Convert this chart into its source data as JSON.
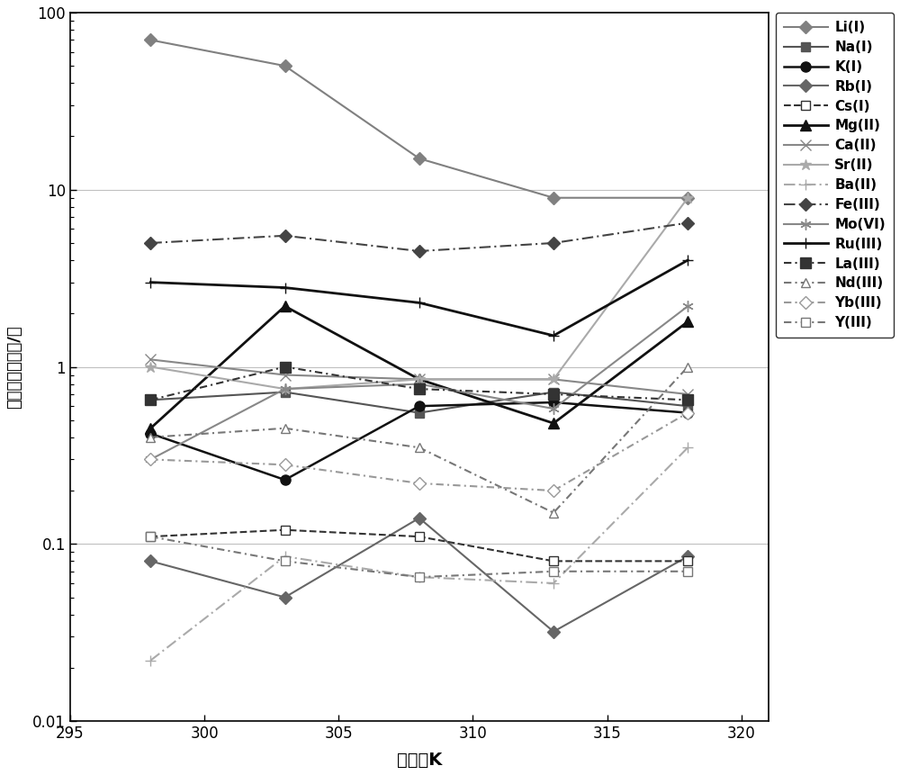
{
  "x": [
    298,
    303,
    308,
    313,
    318
  ],
  "series_order": [
    "Li(I)",
    "Na(I)",
    "K(I)",
    "Rb(I)",
    "Cs(I)",
    "Mg(II)",
    "Ca(II)",
    "Sr(II)",
    "Ba(II)",
    "Fe(III)",
    "Mo(VI)",
    "Ru(III)",
    "La(III)",
    "Nd(III)",
    "Yb(III)",
    "Y(III)"
  ],
  "series_data": {
    "Li(I)": [
      70,
      50,
      15,
      9.0,
      9.0
    ],
    "Na(I)": [
      0.65,
      0.72,
      0.55,
      0.72,
      0.6
    ],
    "K(I)": [
      0.42,
      0.23,
      0.6,
      0.63,
      0.55
    ],
    "Rb(I)": [
      0.08,
      0.05,
      0.14,
      0.032,
      0.085
    ],
    "Cs(I)": [
      0.11,
      0.12,
      0.11,
      0.08,
      0.08
    ],
    "Mg(II)": [
      0.45,
      2.2,
      0.85,
      0.48,
      1.8
    ],
    "Ca(II)": [
      1.1,
      0.9,
      0.85,
      0.85,
      0.7
    ],
    "Sr(II)": [
      1.0,
      0.75,
      0.85,
      0.85,
      9.0
    ],
    "Ba(II)": [
      0.022,
      0.085,
      0.065,
      0.06,
      0.35
    ],
    "Fe(III)": [
      5.0,
      5.5,
      4.5,
      5.0,
      6.5
    ],
    "Mo(VI)": [
      0.3,
      0.75,
      0.8,
      0.58,
      2.2
    ],
    "Ru(III)": [
      3.0,
      2.8,
      2.3,
      1.5,
      4.0
    ],
    "La(III)": [
      0.65,
      1.0,
      0.75,
      0.7,
      0.65
    ],
    "Nd(III)": [
      0.4,
      0.45,
      0.35,
      0.15,
      1.0
    ],
    "Yb(III)": [
      0.3,
      0.28,
      0.22,
      0.2,
      0.55
    ],
    "Y(III)": [
      0.11,
      0.08,
      0.065,
      0.07,
      0.07
    ]
  },
  "xlabel": "温度，K",
  "ylabel": "分配系数，毫升/克",
  "xlim": [
    295,
    321
  ],
  "ylim": [
    0.01,
    100
  ],
  "xticks": [
    295,
    300,
    305,
    310,
    315,
    320
  ],
  "background_color": "#ffffff",
  "grid_color": "#c0c0c0"
}
